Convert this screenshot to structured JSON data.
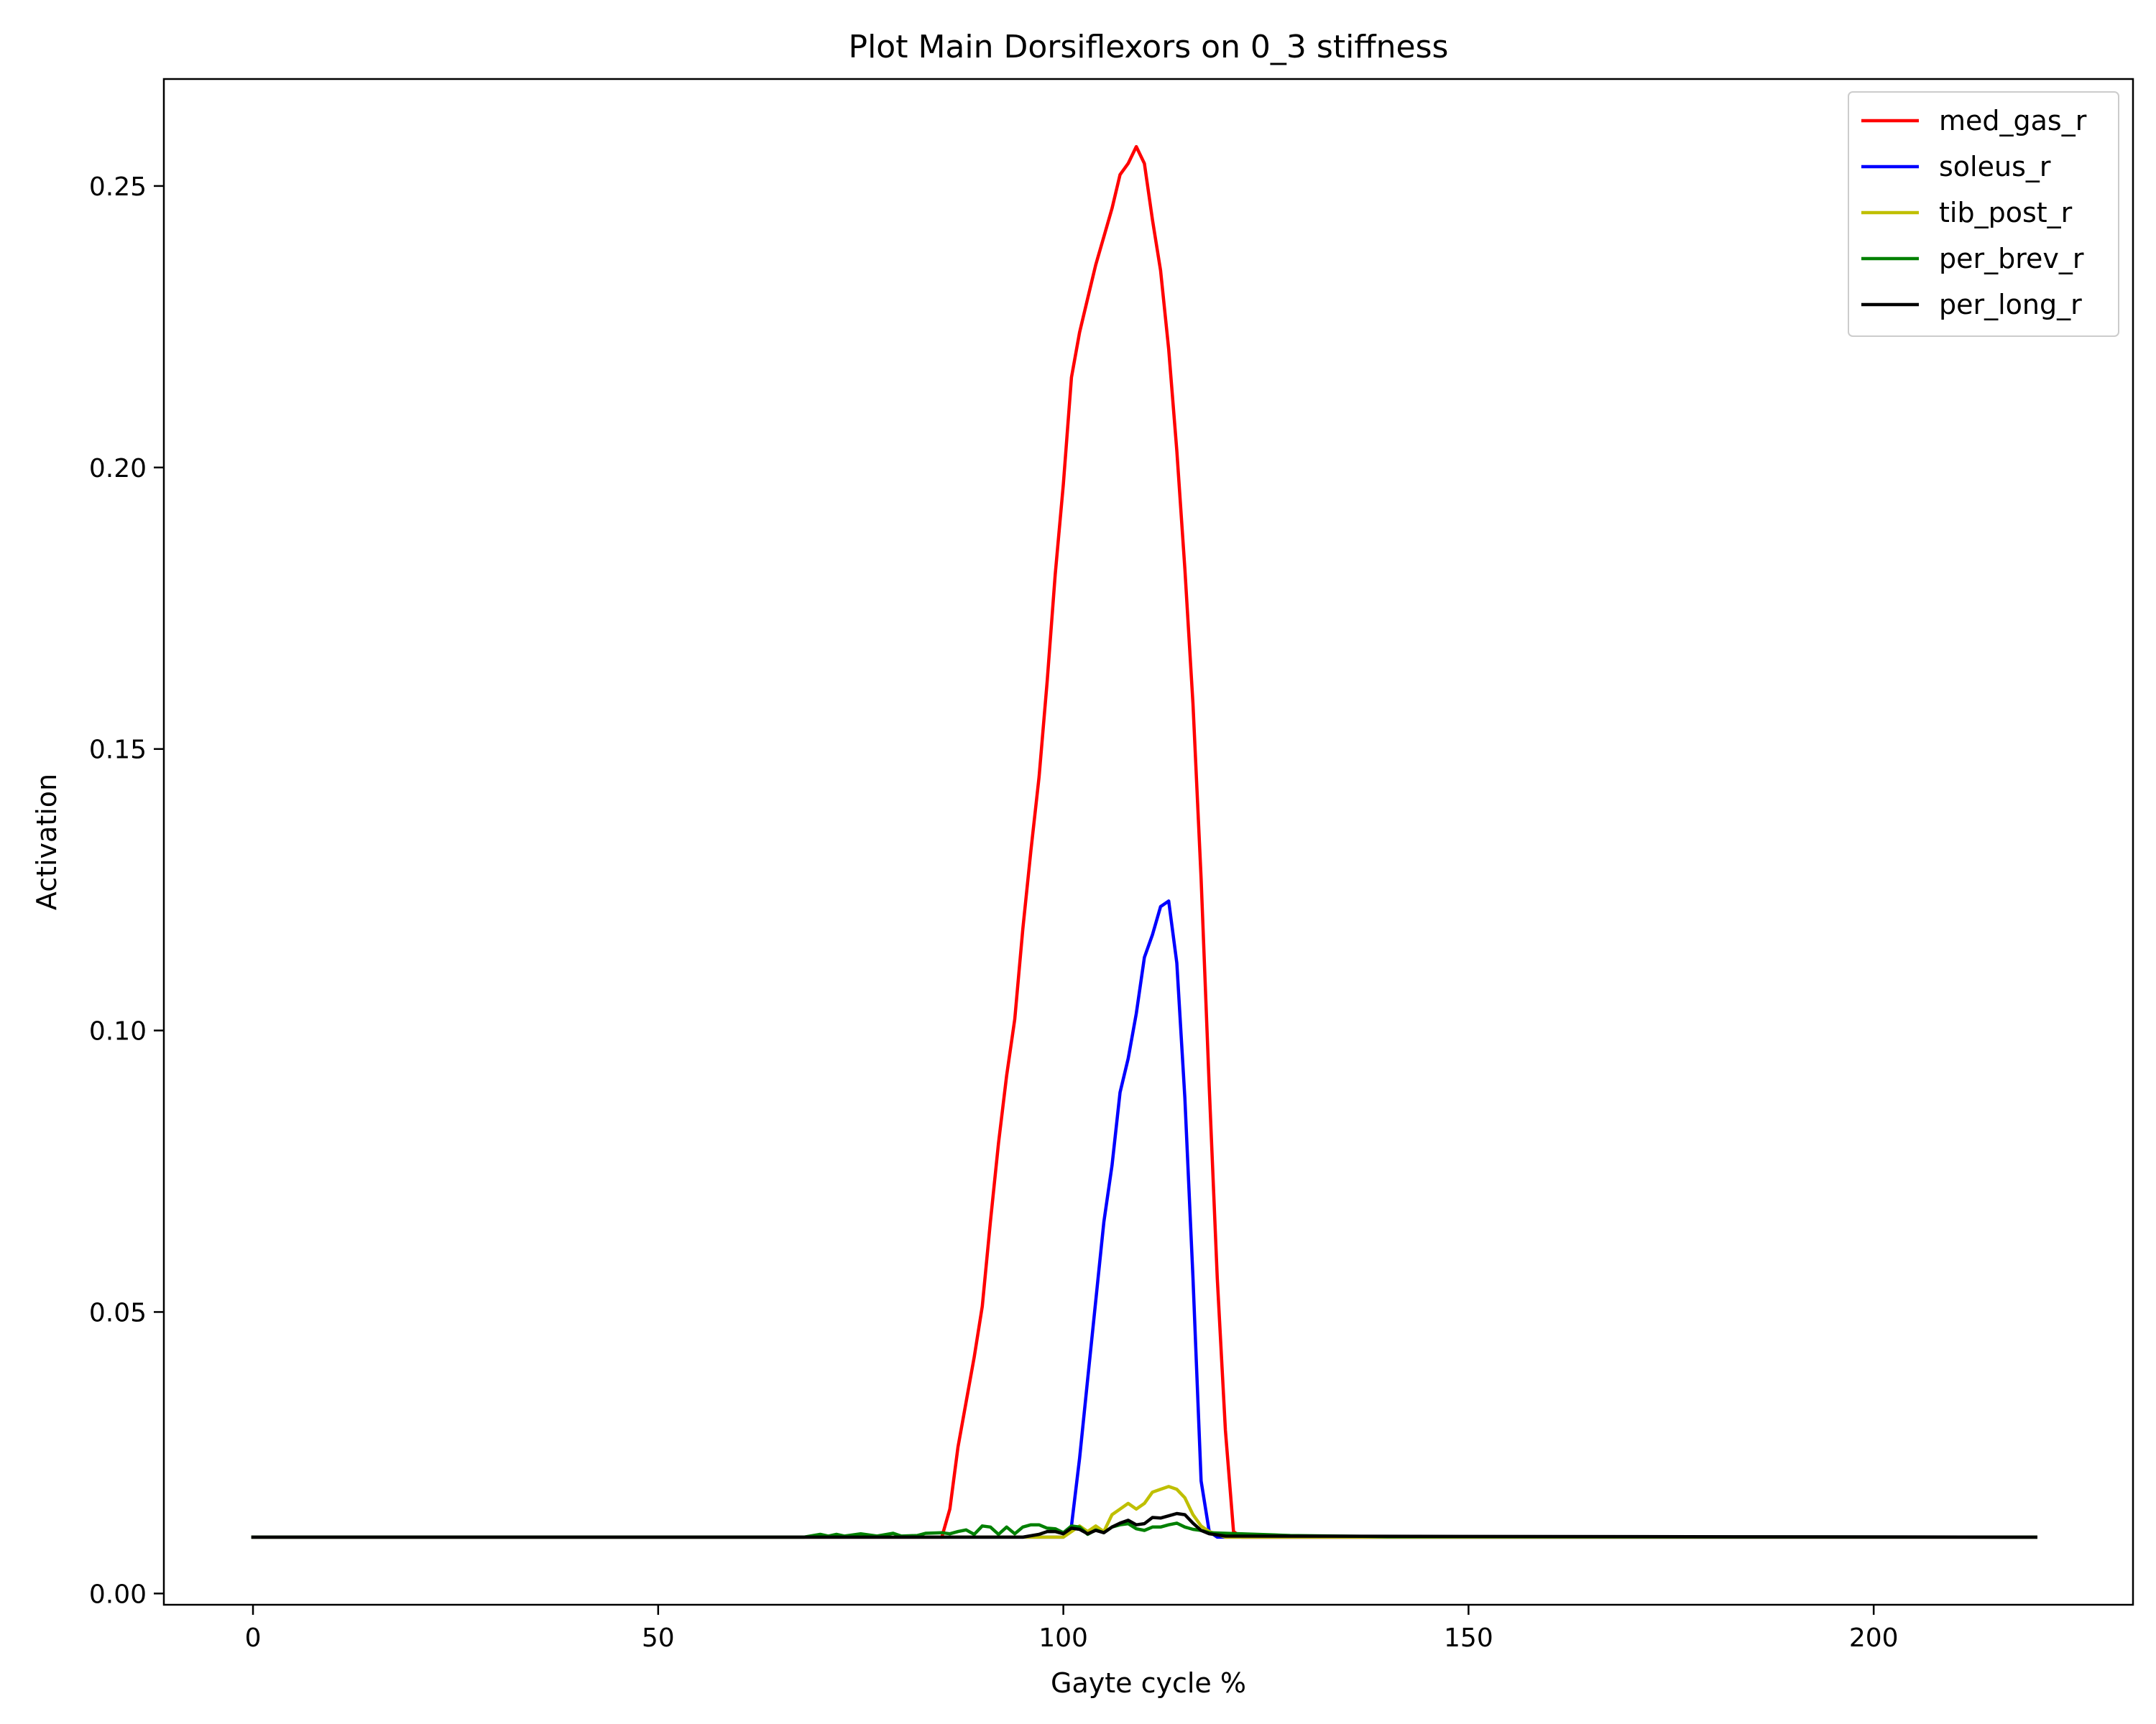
{
  "chart_data": {
    "type": "line",
    "title": "Plot Main Dorsiflexors on 0_3 stiffness",
    "xlabel": "Gayte cycle %",
    "ylabel": "Activation",
    "xlim": [
      -11,
      232
    ],
    "ylim": [
      -0.002,
      0.269
    ],
    "xticks": [
      0,
      50,
      100,
      150,
      200
    ],
    "xtick_labels": [
      "0",
      "50",
      "100",
      "150",
      "200"
    ],
    "yticks": [
      0.0,
      0.05,
      0.1,
      0.15,
      0.2,
      0.25
    ],
    "ytick_labels": [
      "0.00",
      "0.05",
      "0.10",
      "0.15",
      "0.20",
      "0.25"
    ],
    "grid": false,
    "legend_position": "top-right",
    "baseline": 0.01,
    "x_max": 220,
    "series": [
      {
        "name": "med_gas_r",
        "color": "#ff0000",
        "points": [
          [
            0,
            0.01
          ],
          [
            85,
            0.01
          ],
          [
            86,
            0.015
          ],
          [
            87,
            0.026
          ],
          [
            88,
            0.034
          ],
          [
            89,
            0.042
          ],
          [
            90,
            0.051
          ],
          [
            91,
            0.066
          ],
          [
            92,
            0.08
          ],
          [
            93,
            0.092
          ],
          [
            94,
            0.102
          ],
          [
            95,
            0.118
          ],
          [
            96,
            0.132
          ],
          [
            97,
            0.145
          ],
          [
            98,
            0.162
          ],
          [
            99,
            0.181
          ],
          [
            100,
            0.197
          ],
          [
            101,
            0.216
          ],
          [
            102,
            0.224
          ],
          [
            103,
            0.23
          ],
          [
            104,
            0.236
          ],
          [
            105,
            0.241
          ],
          [
            106,
            0.246
          ],
          [
            107,
            0.252
          ],
          [
            108,
            0.254
          ],
          [
            109,
            0.257
          ],
          [
            110,
            0.254
          ],
          [
            111,
            0.244
          ],
          [
            112,
            0.235
          ],
          [
            113,
            0.221
          ],
          [
            114,
            0.203
          ],
          [
            115,
            0.182
          ],
          [
            116,
            0.158
          ],
          [
            117,
            0.127
          ],
          [
            118,
            0.09
          ],
          [
            119,
            0.056
          ],
          [
            120,
            0.029
          ],
          [
            121,
            0.011
          ],
          [
            122,
            0.01
          ],
          [
            220,
            0.01
          ]
        ]
      },
      {
        "name": "soleus_r",
        "color": "#0000ff",
        "points": [
          [
            0,
            0.01
          ],
          [
            100,
            0.01
          ],
          [
            101,
            0.012
          ],
          [
            102,
            0.024
          ],
          [
            103,
            0.038
          ],
          [
            104,
            0.052
          ],
          [
            105,
            0.066
          ],
          [
            106,
            0.076
          ],
          [
            107,
            0.089
          ],
          [
            108,
            0.095
          ],
          [
            109,
            0.103
          ],
          [
            110,
            0.113
          ],
          [
            111,
            0.117
          ],
          [
            112,
            0.122
          ],
          [
            113,
            0.123
          ],
          [
            114,
            0.112
          ],
          [
            115,
            0.088
          ],
          [
            116,
            0.056
          ],
          [
            117,
            0.02
          ],
          [
            118,
            0.011
          ],
          [
            119,
            0.01
          ],
          [
            220,
            0.01
          ]
        ]
      },
      {
        "name": "tib_post_r",
        "color": "#bfbf00",
        "points": [
          [
            0,
            0.01
          ],
          [
            100,
            0.01
          ],
          [
            101,
            0.011
          ],
          [
            102,
            0.012
          ],
          [
            103,
            0.011
          ],
          [
            104,
            0.012
          ],
          [
            105,
            0.011
          ],
          [
            106,
            0.014
          ],
          [
            107,
            0.015
          ],
          [
            108,
            0.016
          ],
          [
            109,
            0.015
          ],
          [
            110,
            0.016
          ],
          [
            111,
            0.018
          ],
          [
            112,
            0.0185
          ],
          [
            113,
            0.019
          ],
          [
            114,
            0.0185
          ],
          [
            115,
            0.017
          ],
          [
            116,
            0.014
          ],
          [
            117,
            0.012
          ],
          [
            118,
            0.011
          ],
          [
            120,
            0.01
          ],
          [
            220,
            0.01
          ]
        ]
      },
      {
        "name": "per_brev_r",
        "color": "#008000",
        "points": [
          [
            0,
            0.01
          ],
          [
            68,
            0.01
          ],
          [
            70,
            0.0105
          ],
          [
            71,
            0.0102
          ],
          [
            72,
            0.0105
          ],
          [
            73,
            0.0102
          ],
          [
            75,
            0.0106
          ],
          [
            77,
            0.0102
          ],
          [
            79,
            0.0107
          ],
          [
            80,
            0.0102
          ],
          [
            82,
            0.0103
          ],
          [
            83,
            0.0107
          ],
          [
            85,
            0.0108
          ],
          [
            86,
            0.0106
          ],
          [
            87,
            0.011
          ],
          [
            88,
            0.0113
          ],
          [
            89,
            0.0105
          ],
          [
            90,
            0.012
          ],
          [
            91,
            0.0118
          ],
          [
            92,
            0.0105
          ],
          [
            93,
            0.0118
          ],
          [
            94,
            0.0106
          ],
          [
            95,
            0.0118
          ],
          [
            96,
            0.0122
          ],
          [
            97,
            0.0122
          ],
          [
            98,
            0.0116
          ],
          [
            99,
            0.0115
          ],
          [
            100,
            0.0108
          ],
          [
            101,
            0.012
          ],
          [
            102,
            0.0118
          ],
          [
            103,
            0.0105
          ],
          [
            104,
            0.0113
          ],
          [
            105,
            0.0108
          ],
          [
            106,
            0.0118
          ],
          [
            107,
            0.0122
          ],
          [
            108,
            0.0124
          ],
          [
            109,
            0.0115
          ],
          [
            110,
            0.0112
          ],
          [
            111,
            0.0118
          ],
          [
            112,
            0.0118
          ],
          [
            113,
            0.0122
          ],
          [
            114,
            0.0125
          ],
          [
            115,
            0.0118
          ],
          [
            116,
            0.0114
          ],
          [
            117,
            0.0112
          ],
          [
            118,
            0.0108
          ],
          [
            120,
            0.0107
          ],
          [
            122,
            0.0106
          ],
          [
            124,
            0.0105
          ],
          [
            126,
            0.0104
          ],
          [
            128,
            0.0103
          ],
          [
            140,
            0.0101
          ],
          [
            220,
            0.01
          ]
        ]
      },
      {
        "name": "per_long_r",
        "color": "#000000",
        "points": [
          [
            0,
            0.01
          ],
          [
            95,
            0.01
          ],
          [
            97,
            0.0105
          ],
          [
            98,
            0.011
          ],
          [
            99,
            0.011
          ],
          [
            100,
            0.0106
          ],
          [
            101,
            0.0116
          ],
          [
            102,
            0.0114
          ],
          [
            103,
            0.0106
          ],
          [
            104,
            0.0112
          ],
          [
            105,
            0.0108
          ],
          [
            106,
            0.0118
          ],
          [
            107,
            0.0125
          ],
          [
            108,
            0.013
          ],
          [
            109,
            0.0122
          ],
          [
            110,
            0.0124
          ],
          [
            111,
            0.0135
          ],
          [
            112,
            0.0134
          ],
          [
            113,
            0.0138
          ],
          [
            114,
            0.0142
          ],
          [
            115,
            0.014
          ],
          [
            116,
            0.0125
          ],
          [
            117,
            0.0112
          ],
          [
            118,
            0.0106
          ],
          [
            120,
            0.0102
          ],
          [
            220,
            0.01
          ]
        ]
      }
    ]
  }
}
